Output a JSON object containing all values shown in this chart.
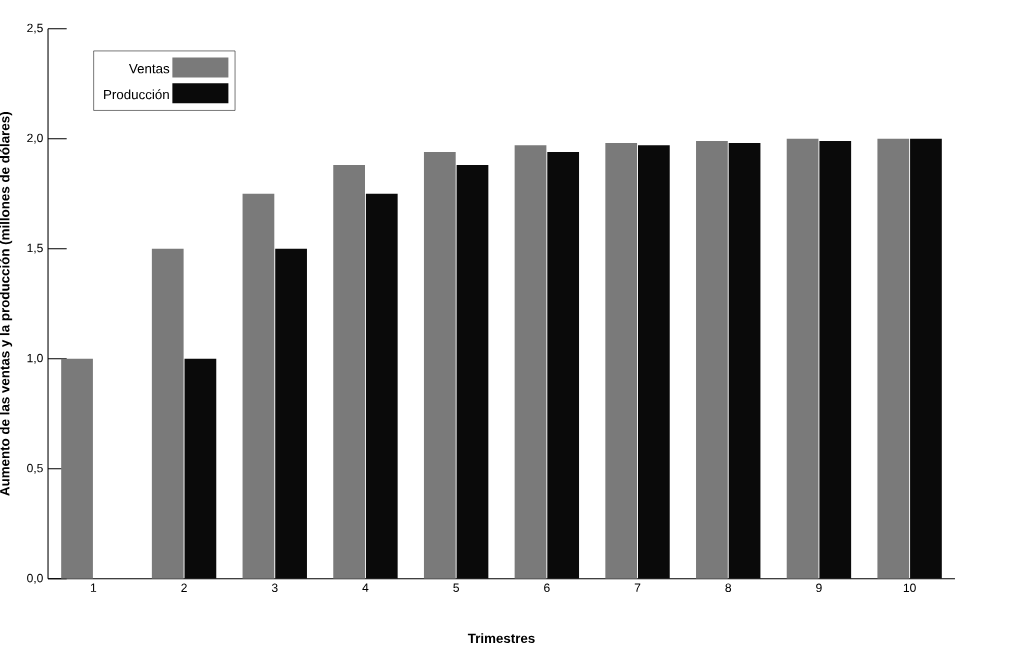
{
  "chart_data": {
    "type": "bar",
    "xlabel": "Trimestres",
    "ylabel": "Aumento de las ventas y la producción (millones de dólares)",
    "categories": [
      "1",
      "2",
      "3",
      "4",
      "5",
      "6",
      "7",
      "8",
      "9",
      "10"
    ],
    "series": [
      {
        "name": "Ventas",
        "color": "#7a7a7a",
        "values": [
          1.0,
          1.5,
          1.75,
          1.88,
          1.94,
          1.97,
          1.98,
          1.99,
          2.0,
          2.0
        ]
      },
      {
        "name": "Producción",
        "color": "#0a0a0a",
        "values": [
          0,
          1.0,
          1.5,
          1.75,
          1.88,
          1.94,
          1.97,
          1.98,
          1.99,
          2.0
        ]
      }
    ],
    "ylim": [
      0,
      2.5
    ],
    "yticks": [
      {
        "value": 0,
        "label": "0,0"
      },
      {
        "value": 0.5,
        "label": "0,5"
      },
      {
        "value": 1.0,
        "label": "1,0"
      },
      {
        "value": 1.5,
        "label": "1,5"
      },
      {
        "value": 2.0,
        "label": "2,0"
      },
      {
        "value": 2.5,
        "label": "2,5"
      }
    ],
    "grid": false,
    "legend": "top left"
  }
}
